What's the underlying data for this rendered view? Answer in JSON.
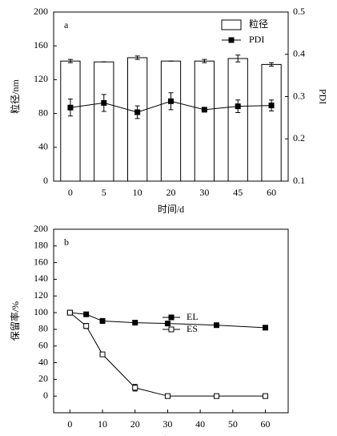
{
  "chart_data": [
    {
      "type": "bar",
      "label": "a",
      "x_label": "时间/d",
      "y_label": "粒径/nm",
      "y2_label": "PDI",
      "categories": [
        "0",
        "5",
        "10",
        "20",
        "30",
        "45",
        "60"
      ],
      "ylim": [
        0,
        200
      ],
      "yticks": [
        0,
        40,
        80,
        120,
        160,
        200
      ],
      "y2lim": [
        0.1,
        0.5
      ],
      "y2ticks": [
        0.1,
        0.2,
        0.3,
        0.4,
        0.5
      ],
      "legend": "upper right",
      "series": [
        {
          "name": "粒径",
          "type": "bar",
          "color": "#ffffff",
          "values": [
            142,
            141,
            146,
            142,
            142,
            145,
            138
          ],
          "errors": [
            2,
            0,
            2,
            0,
            2,
            4,
            2
          ]
        },
        {
          "name": "PDI",
          "type": "line",
          "axis": "y2",
          "color": "#000000",
          "marker_fill": "#000000",
          "values": [
            0.274,
            0.285,
            0.263,
            0.289,
            0.269,
            0.277,
            0.279
          ],
          "errors": [
            0.02,
            0.02,
            0.015,
            0.02,
            0.005,
            0.015,
            0.013
          ]
        }
      ]
    },
    {
      "type": "line",
      "label": "b",
      "x_label": "时间/d",
      "y_label": "保留率/%",
      "x": [
        0,
        5,
        10,
        20,
        30,
        45,
        60
      ],
      "xlim": [
        -5,
        67
      ],
      "xticks": [
        0,
        10,
        20,
        30,
        40,
        50,
        60
      ],
      "ylim": [
        -20,
        200
      ],
      "yticks": [
        0,
        20,
        40,
        60,
        80,
        100,
        120,
        140,
        160,
        180,
        200
      ],
      "legend": "center",
      "series": [
        {
          "name": "EL",
          "color": "#000000",
          "marker_fill": "#000000",
          "values": [
            100,
            98,
            90,
            88,
            87,
            85,
            82
          ],
          "errors": [
            0,
            0,
            3,
            0,
            0,
            0,
            2
          ]
        },
        {
          "name": "ES",
          "color": "#000000",
          "marker_fill": "#ffffff",
          "values": [
            100,
            84,
            50,
            10,
            0,
            0,
            0
          ],
          "errors": [
            0,
            3,
            2,
            4,
            0,
            0,
            0
          ]
        }
      ]
    }
  ]
}
